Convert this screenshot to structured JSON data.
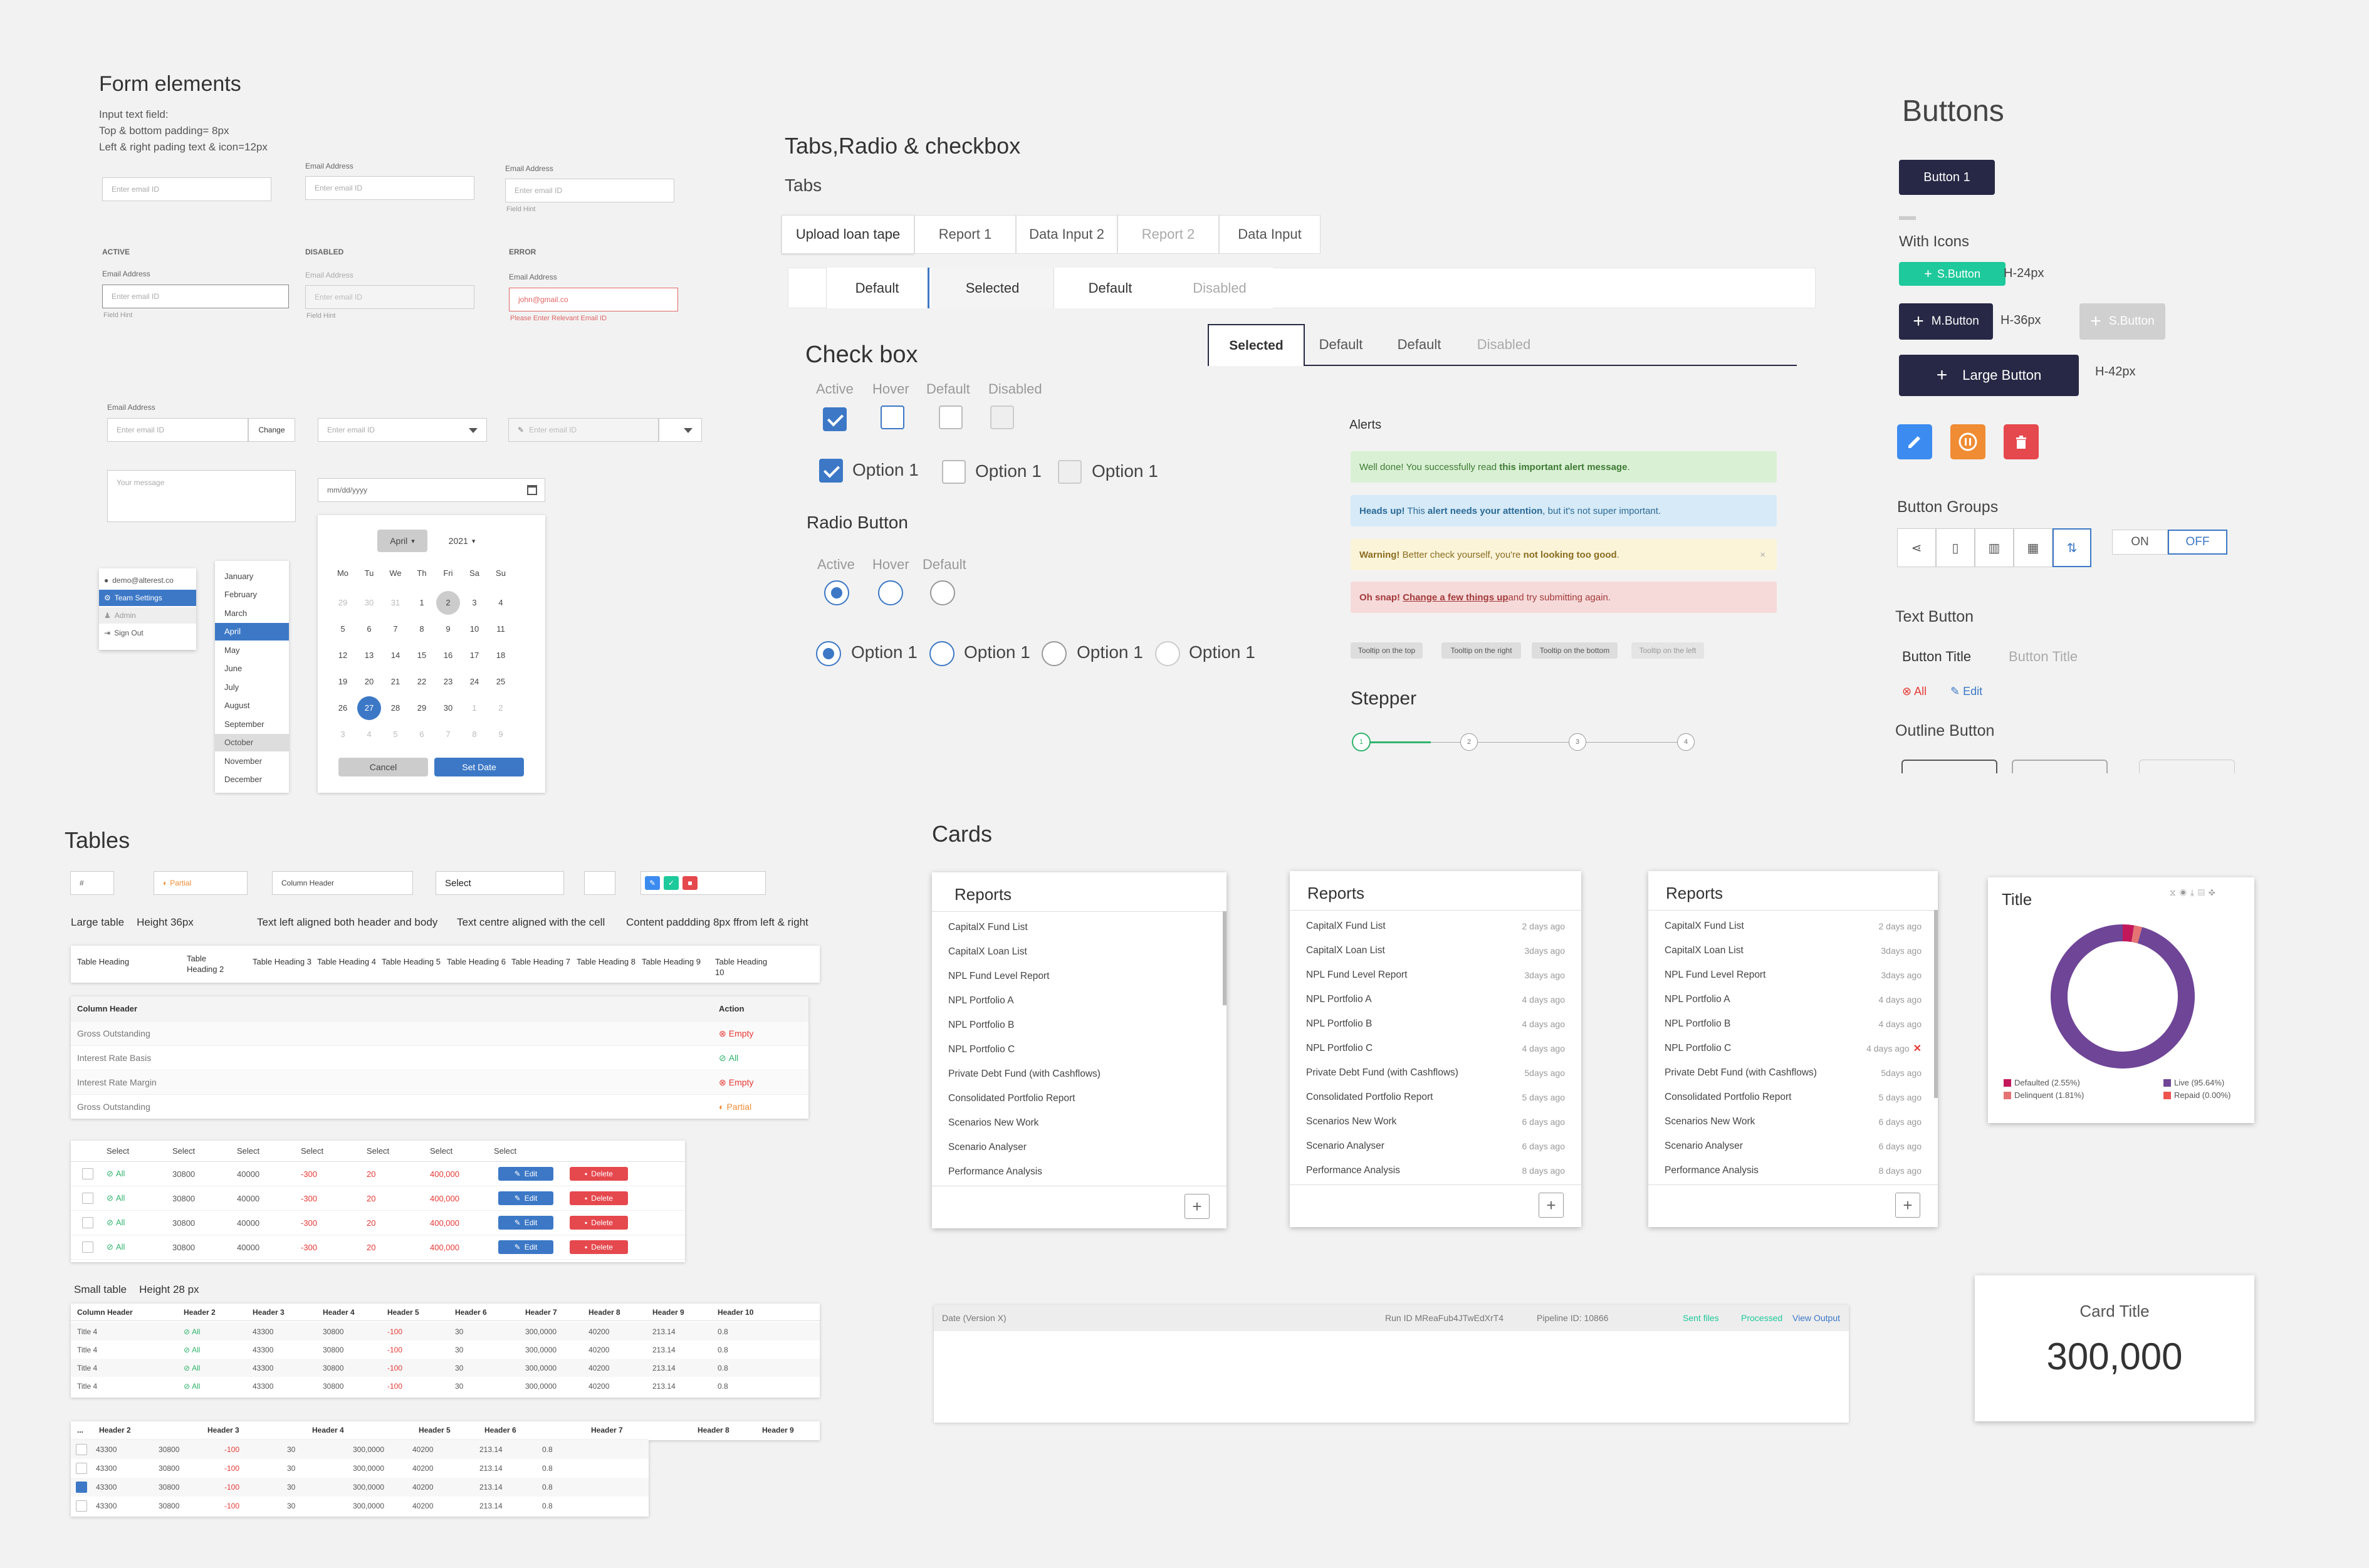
{
  "form": {
    "title": "Form elements",
    "note1": "Input text field:",
    "note2": "Top & bottom padding= 8px",
    "note3": "Left & right pading text & icon=12px",
    "email_label": "Email Address",
    "placeholder": "Enter email ID",
    "field_hint": "Field Hint",
    "active": "ACTIVE",
    "disabled": "DISABLED",
    "error": "ERROR",
    "error_value": "john@gmail.co",
    "error_msg": "Please Enter Relevant Email ID",
    "change": "Change",
    "message_ph": "Your message",
    "date_ph": "mm/dd/yyyy"
  },
  "user_menu": [
    "demo@alterest.co",
    "Team Settings",
    "Admin",
    "Sign Out"
  ],
  "months": [
    "January",
    "February",
    "March",
    "April",
    "May",
    "June",
    "July",
    "August",
    "September",
    "October",
    "November",
    "December"
  ],
  "calendar": {
    "month": "April",
    "year": "2021",
    "days": [
      "Mo",
      "Tu",
      "We",
      "Th",
      "Fri",
      "Sa",
      "Su"
    ],
    "weeks": [
      [
        "29",
        "30",
        "31",
        "1",
        "2",
        "3",
        "4"
      ],
      [
        "5",
        "6",
        "7",
        "8",
        "9",
        "10",
        "11"
      ],
      [
        "12",
        "13",
        "14",
        "15",
        "16",
        "17",
        "18"
      ],
      [
        "19",
        "20",
        "21",
        "22",
        "23",
        "24",
        "25"
      ],
      [
        "26",
        "27",
        "28",
        "29",
        "30",
        "1",
        "2"
      ],
      [
        "3",
        "4",
        "5",
        "6",
        "7",
        "8",
        "9"
      ]
    ],
    "cancel": "Cancel",
    "set": "Set Date"
  },
  "tabs": {
    "title": "Tabs,Radio & checkbox",
    "sub": "Tabs",
    "row1": [
      "Upload loan tape",
      "Report 1",
      "Data Input 2",
      "Report 2",
      "Data Input"
    ],
    "row2": [
      "Default",
      "Selected",
      "Default",
      "Disabled"
    ],
    "row3": [
      "Selected",
      "Default",
      "Default",
      "Disabled"
    ]
  },
  "checkbox": {
    "title": "Check box",
    "states": [
      "Active",
      "Hover",
      "Default",
      "Disabled"
    ],
    "option": "Option 1"
  },
  "radio": {
    "title": "Radio Button",
    "states": [
      "Active",
      "Hover",
      "Default"
    ],
    "option": "Option 1"
  },
  "alerts": {
    "title": "Alerts",
    "a1": [
      "Well done!",
      " You successfully read ",
      "this important alert message",
      "."
    ],
    "a2": [
      "Heads up!",
      " This ",
      "alert needs your attention",
      ", but it's not super important."
    ],
    "a3": [
      "Warning!",
      " Better check yourself, you're ",
      "not looking too good",
      "."
    ],
    "a4": [
      "Oh snap!",
      " ",
      "Change a few things up",
      " and try submitting again."
    ],
    "close": "×"
  },
  "tooltips": [
    "Tooltip on the top",
    "Tooltip on the right",
    "Tooltip on the bottom",
    "Tooltip on the left"
  ],
  "stepper": {
    "title": "Stepper",
    "steps": [
      "1",
      "2",
      "3",
      "4"
    ]
  },
  "buttons": {
    "title": "Buttons",
    "b1": "Button 1",
    "with_icons": "With Icons",
    "s": "S.Button",
    "m": "M.Button",
    "l": "Large Button",
    "h24": "H-24px",
    "h36": "H-36px",
    "h42": "H-42px",
    "groups": "Button Groups",
    "on": "ON",
    "off": "OFF",
    "text_button": "Text Button",
    "tb1": "Button Title",
    "tb2": "Button Title",
    "all": "All",
    "edit": "Edit",
    "outline": "Outline Button"
  },
  "tables": {
    "title": "Tables",
    "f1": "#",
    "f2": "Partial",
    "f3": "Column Header",
    "f4": "Select",
    "large": "Large table",
    "h36": "Height 36px",
    "left": "Text left aligned both header and body",
    "centre": "Text centre aligned with the cell",
    "pad": "Content paddding 8px ffrom left & right",
    "headings": [
      "Table Heading",
      "Table Heading 2",
      "Table Heading 3",
      "Table Heading 4",
      "Table Heading 5",
      "Table Heading 6",
      "Table Heading 7",
      "Table Heading 8",
      "Table Heading 9",
      "Table Heading 10"
    ],
    "t2": {
      "h1": "Column Header",
      "h2": "Action",
      "rows": [
        [
          "Gross Outstanding",
          "Empty"
        ],
        [
          "Interest Rate Basis",
          "All"
        ],
        [
          "Interest Rate Margin",
          "Empty"
        ],
        [
          "Gross Outstanding",
          "Partial"
        ]
      ]
    },
    "t3": {
      "head": "Select",
      "row": [
        "All",
        "30800",
        "40000",
        "-300",
        "20",
        "400,000"
      ],
      "edit": "Edit",
      "del": "Delete"
    },
    "small": "Small table",
    "h28": "Height 28 px",
    "t4": {
      "heads": [
        "Column Header",
        "Header 2",
        "Header 3",
        "Header 4",
        "Header 5",
        "Header 6",
        "Header 7",
        "Header 8",
        "Header 9",
        "Header 10"
      ],
      "row": [
        "Title 4",
        "All",
        "43300",
        "30800",
        "-100",
        "30",
        "300,0000",
        "40200",
        "213.14",
        "0.8"
      ]
    },
    "t5": {
      "heads": [
        "...",
        "Header 2",
        "Header 3",
        "Header 4",
        "Header 5",
        "Header 6",
        "Header 7",
        "Header 8",
        "Header 9"
      ],
      "row": [
        "43300",
        "30800",
        "-100",
        "30",
        "300,0000",
        "40200",
        "213.14",
        "0.8"
      ]
    }
  },
  "cards": {
    "title": "Cards",
    "reports": "Reports",
    "items": [
      "CapitalX Fund List",
      "CapitalX Loan List",
      "NPL Fund Level Report",
      "NPL Portfolio A",
      "NPL Portfolio B",
      "NPL Portfolio C",
      "Private Debt Fund (with Cashflows)",
      "Consolidated Portfolio Report",
      "Scenarios New Work",
      "Scenario Analyser",
      "Performance Analysis"
    ],
    "dates": [
      "2 days ago",
      "3days ago",
      "3days ago",
      "4 days ago",
      "4 days ago",
      "4 days ago",
      "5days ago",
      "5 days ago",
      "6 days ago",
      "6 days ago",
      "8 days ago"
    ],
    "chart_title": "Title",
    "card_title": "Card Title",
    "card_value": "300,000",
    "bar": {
      "date": "Date (Version X)",
      "run": "Run ID MReaFub4JTwEdXrT4",
      "pipeline": "Pipeline ID: 10866",
      "sent": "Sent files",
      "processed": "Processed",
      "view": "View Output"
    }
  },
  "chart_data": {
    "type": "pie",
    "title": "Title",
    "labels": [
      "Defaulted (2.55%)",
      "Delinquent (1.81%)",
      "Live (95.64%)",
      "Repaid (0.00%)"
    ],
    "values": [
      2.55,
      1.81,
      95.64,
      0.0
    ],
    "colors": [
      "#c2185b",
      "#e57373",
      "#6f4597",
      "#ef5350"
    ]
  },
  "colors": {
    "navy": "#272845",
    "green": "#1ec99b",
    "blue": "#3c78c6",
    "red": "#e53935",
    "orange": "#ef8c34",
    "purple": "#6f4597"
  }
}
